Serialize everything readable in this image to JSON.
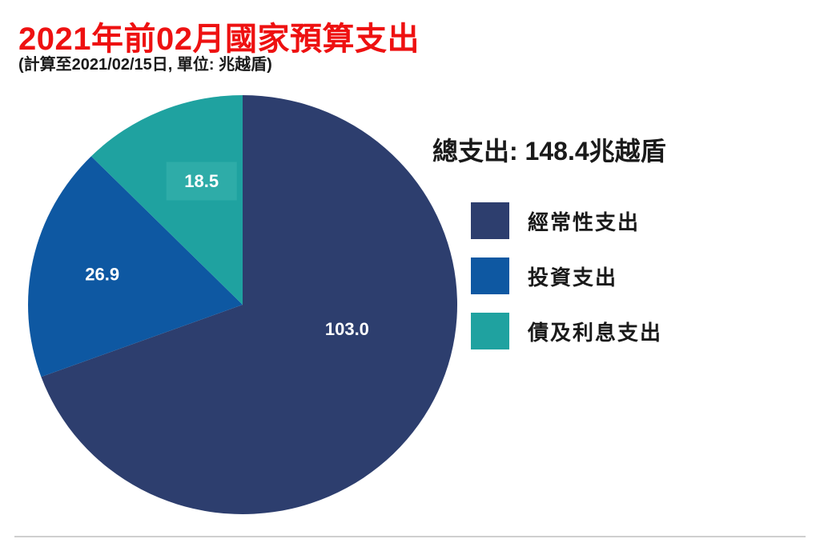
{
  "chart_data": {
    "type": "pie",
    "title": "2021年前02月國家預算支出",
    "subtitle": "(計算至2021/02/15日, 單位: 兆越盾)",
    "total_label": "總支出: 148.4兆越盾",
    "total": 148.4,
    "unit": "兆越盾",
    "slices": [
      {
        "label": "經常性支出",
        "value": 103.0,
        "display": "103.0",
        "color": "#2d3e6e"
      },
      {
        "label": "投資支出",
        "value": 26.9,
        "display": "26.9",
        "color": "#0e58a2"
      },
      {
        "label": "債及利息支出",
        "value": 18.5,
        "display": "18.5",
        "color": "#1fa2a0"
      }
    ],
    "start_angle_deg": 0,
    "direction": "clockwise",
    "legend_position": "right",
    "value_label_color": "#ffffff",
    "highlight_box_color": "#2eaca8",
    "title_color": "#ee1111",
    "text_color": "#1a1a1a",
    "divider_color": "#cfcfcf"
  }
}
